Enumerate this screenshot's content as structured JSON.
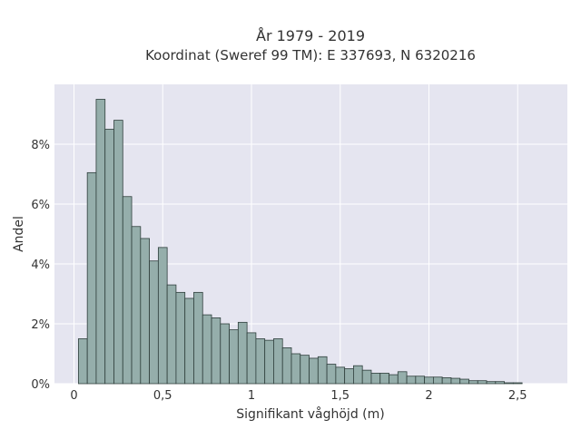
{
  "chart_data": {
    "type": "bar",
    "title_line1": "År 1979 - 2019",
    "title_line2": "Koordinat (Sweref 99 TM): E 337693, N 6320216",
    "xlabel": "Signifikant våghöjd (m)",
    "ylabel": "Andel",
    "x_ticks": [
      {
        "value": 0,
        "label": "0"
      },
      {
        "value": 0.5,
        "label": "0,5"
      },
      {
        "value": 1,
        "label": "1"
      },
      {
        "value": 1.5,
        "label": "1,5"
      },
      {
        "value": 2,
        "label": "2"
      },
      {
        "value": 2.5,
        "label": "2,5"
      }
    ],
    "y_ticks": [
      {
        "value": 0,
        "label": "0%"
      },
      {
        "value": 2,
        "label": "2%"
      },
      {
        "value": 4,
        "label": "4%"
      },
      {
        "value": 6,
        "label": "6%"
      },
      {
        "value": 8,
        "label": "8%"
      }
    ],
    "xlim": [
      -0.11,
      2.78
    ],
    "ylim": [
      0,
      10
    ],
    "grid": true,
    "bar_color": "#95aeab",
    "bar_edge_color": "#2f3f3c",
    "plot_background": "#e5e5f0",
    "bin_start": 0.025,
    "bin_width": 0.05,
    "values": [
      1.5,
      7.05,
      9.5,
      8.5,
      8.8,
      6.25,
      5.25,
      4.85,
      4.1,
      4.55,
      3.3,
      3.05,
      2.85,
      3.05,
      2.3,
      2.2,
      2.0,
      1.8,
      2.05,
      1.7,
      1.5,
      1.45,
      1.5,
      1.2,
      1.0,
      0.95,
      0.85,
      0.9,
      0.65,
      0.55,
      0.5,
      0.6,
      0.45,
      0.35,
      0.35,
      0.3,
      0.4,
      0.25,
      0.25,
      0.22,
      0.22,
      0.2,
      0.18,
      0.15,
      0.1,
      0.1,
      0.07,
      0.07,
      0.03,
      0.03
    ]
  }
}
